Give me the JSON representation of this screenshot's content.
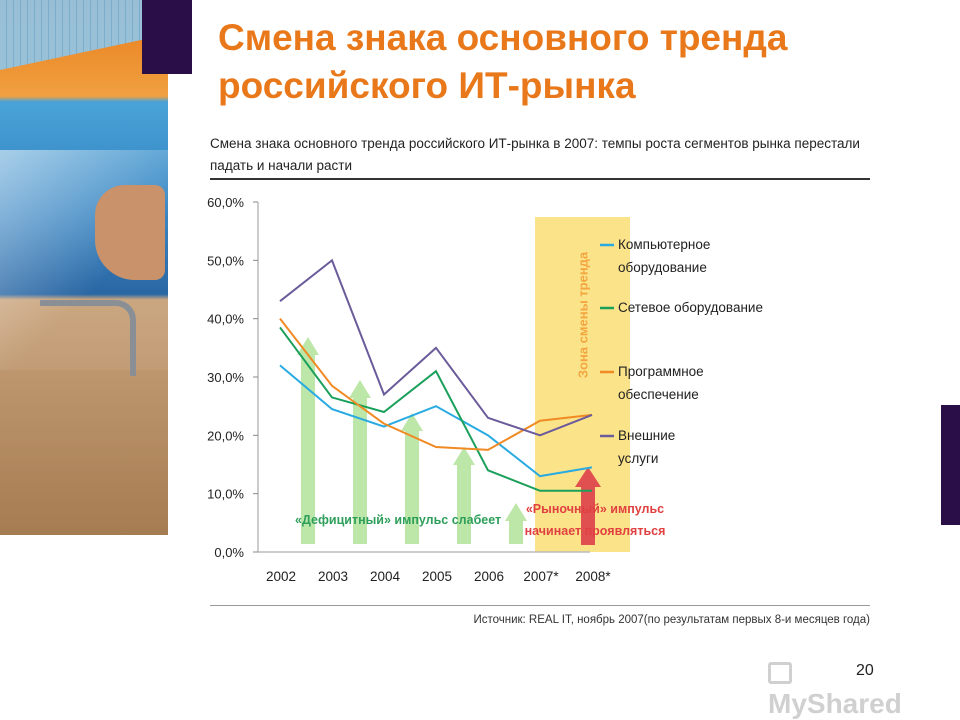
{
  "slide": {
    "title": "Смена знака основного тренда российского ИТ-рынка",
    "page_number": "20",
    "watermark": "MyShared"
  },
  "figure": {
    "caption": "Смена знака основного тренда российского ИТ-рынка в 2007: темпы роста сегментов рынка перестали падать и начали расти",
    "source": "Источник: REAL IT, ноябрь 2007(по результатам первых 8-и месяцев года)"
  },
  "chart_data": {
    "type": "line",
    "categories": [
      "2002",
      "2003",
      "2004",
      "2005",
      "2006",
      "2007*",
      "2008*"
    ],
    "ylim": [
      0,
      60
    ],
    "ytick_labels": [
      "0,0%",
      "10,0%",
      "20,0%",
      "30,0%",
      "40,0%",
      "50,0%",
      "60,0%"
    ],
    "series": [
      {
        "name": "Компьютерное оборудование",
        "color": "#29abe2",
        "values": [
          32,
          24.5,
          21.5,
          25,
          20,
          13,
          14.5
        ]
      },
      {
        "name": "Сетевое оборудование",
        "color": "#1aa05a",
        "values": [
          38.5,
          26.5,
          24,
          31,
          14,
          10.5,
          10.5
        ]
      },
      {
        "name": "Программное обеспечение",
        "color": "#f08a24",
        "values": [
          40,
          28.5,
          22,
          18,
          17.5,
          22.5,
          23.5
        ]
      },
      {
        "name": "Внешние услуги",
        "color": "#6b5b9a",
        "values": [
          43,
          50,
          27,
          35,
          23,
          20,
          23.5
        ]
      }
    ],
    "arrows_up_green": [
      0,
      1,
      2,
      3,
      4
    ],
    "arrow_up_red": 5,
    "zone_label": "Зона смены тренда",
    "zone_color": "#fbe38a",
    "annotation_green": "«Дефицитный» импульс слабеет",
    "annotation_red": "«Рыночный» импульс начинает проявляться",
    "grid": false,
    "legend_position": "right"
  }
}
